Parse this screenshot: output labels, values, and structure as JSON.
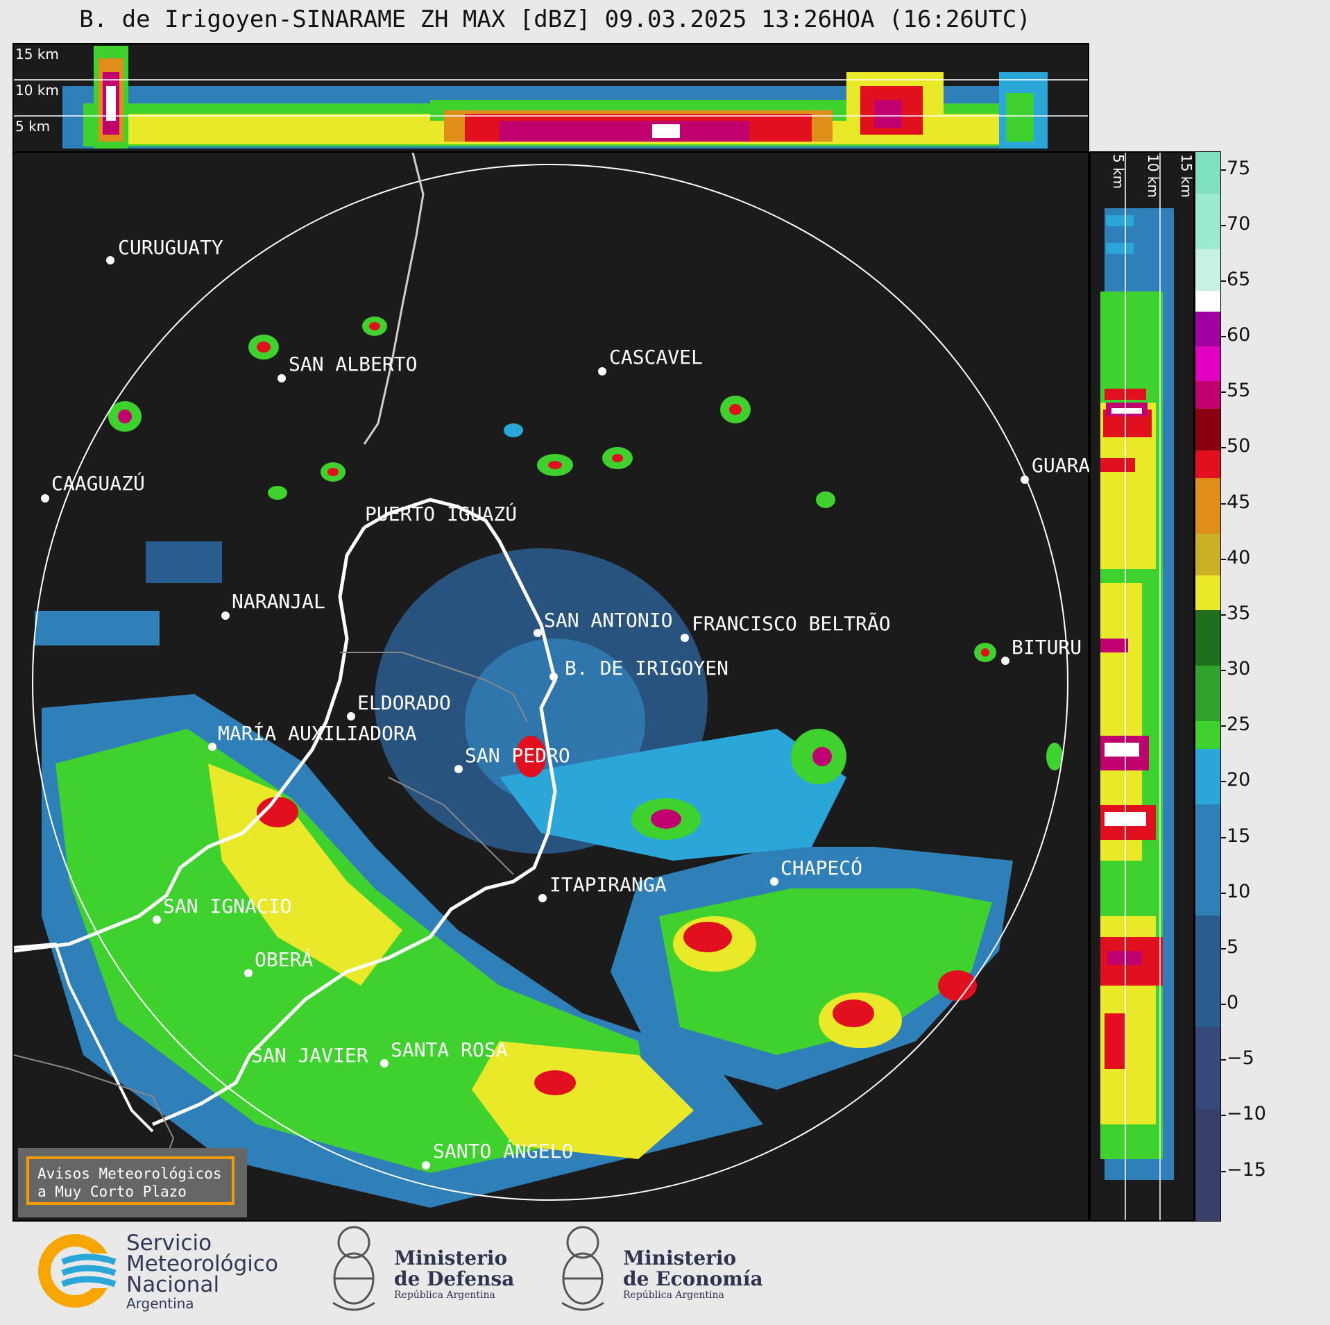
{
  "title": "B. de Irigoyen-SINARAME ZH MAX [dBZ] 09.03.2025 13:26HOA (16:26UTC)",
  "top_panel": {
    "km_labels": [
      "15 km",
      "10 km",
      "5 km"
    ]
  },
  "side_panel": {
    "km_labels": [
      "5 km",
      "10 km",
      "15 km"
    ]
  },
  "colorbar": {
    "unit": "dBZ",
    "ticks": [
      "75",
      "70",
      "65",
      "60",
      "55",
      "50",
      "45",
      "40",
      "35",
      "30",
      "25",
      "20",
      "15",
      "10",
      "5",
      "0",
      "−5",
      "−10",
      "−15"
    ],
    "range": [
      -20,
      76.5
    ],
    "colors": {
      "low": "#3a3f6a",
      "mid_blue": "#2f7fb8",
      "light_blue": "#2aa6d8",
      "green": "#3fd22e",
      "dark_green": "#1f6f1f",
      "yellow": "#e9e92a",
      "orange": "#e08e1a",
      "red": "#e0101e",
      "dark_red": "#8a0010",
      "magenta": "#c0006e",
      "purple": "#a000a0",
      "white": "#ffffff",
      "teal": "#7fe0c0"
    }
  },
  "cities": [
    {
      "name": "CURUGUATY"
    },
    {
      "name": "SAN ALBERTO"
    },
    {
      "name": "CASCAVEL"
    },
    {
      "name": "CAAGUAZÚ"
    },
    {
      "name": "GUARA"
    },
    {
      "name": "PUERTO IGUAZÚ"
    },
    {
      "name": "NARANJAL"
    },
    {
      "name": "SAN ANTONIO"
    },
    {
      "name": "FRANCISCO BELTRÃO"
    },
    {
      "name": "BITURU"
    },
    {
      "name": "B. DE IRIGOYEN"
    },
    {
      "name": "ELDORADO"
    },
    {
      "name": "MARÍA AUXILIADORA"
    },
    {
      "name": "SAN PEDRO"
    },
    {
      "name": "ITAPIRANGA"
    },
    {
      "name": "CHAPECÓ"
    },
    {
      "name": "SAN IGNACIO"
    },
    {
      "name": "OBERÁ"
    },
    {
      "name": "SAN JAVIER"
    },
    {
      "name": "SANTA ROSA"
    },
    {
      "name": "SANTO ÁNGELO"
    }
  ],
  "warning": {
    "line1": "Avisos Meteorológicos",
    "line2": "a Muy Corto Plazo"
  },
  "logos": {
    "smn": {
      "line1": "Servicio",
      "line2": "Meteorológico",
      "line3": "Nacional",
      "line4": "Argentina"
    },
    "defensa": {
      "line1": "Ministerio",
      "line2": "de Defensa",
      "line3": "República Argentina"
    },
    "economia": {
      "line1": "Ministerio",
      "line2": "de Economía",
      "line3": "República Argentina"
    }
  }
}
